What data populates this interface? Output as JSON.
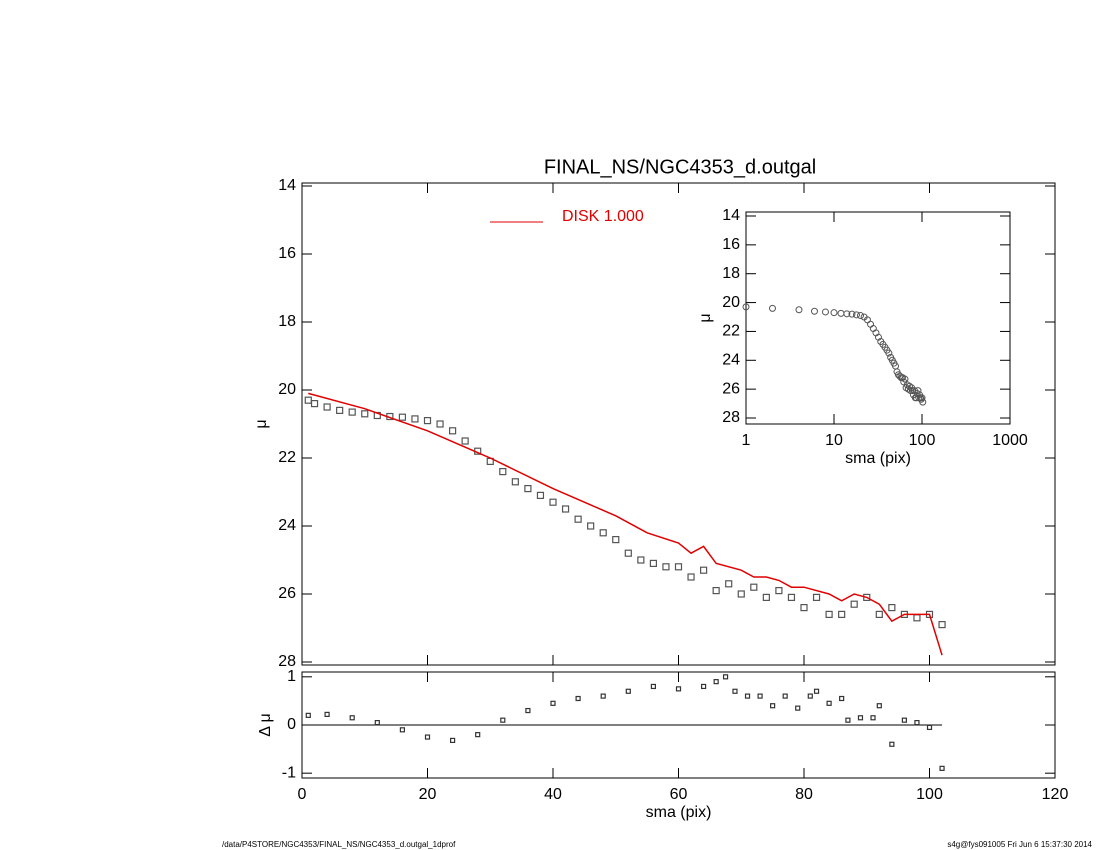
{
  "chart_data": [
    {
      "type": "line",
      "title": "FINAL_NS/NGC4353_d.outgal",
      "ylabel": "μ",
      "ylim": [
        14,
        28
      ],
      "y_inverted": true,
      "yticks": [
        14,
        16,
        18,
        20,
        22,
        24,
        26,
        28
      ],
      "series": [
        {
          "marker": "square",
          "color": "#555555",
          "x": [
            1,
            2,
            4,
            6,
            8,
            10,
            12,
            14,
            16,
            18,
            20,
            22,
            24,
            26,
            28,
            30,
            32,
            34,
            36,
            38,
            40,
            42,
            44,
            46,
            48,
            50,
            52,
            54,
            56,
            58,
            60,
            62,
            64,
            66,
            68,
            70,
            72,
            74,
            76,
            78,
            80,
            82,
            84,
            86,
            88,
            90,
            92,
            94,
            96,
            98,
            100,
            102
          ],
          "values": [
            20.3,
            20.4,
            20.5,
            20.6,
            20.65,
            20.7,
            20.75,
            20.78,
            20.8,
            20.85,
            20.9,
            21.0,
            21.2,
            21.5,
            21.8,
            22.1,
            22.4,
            22.7,
            22.9,
            23.1,
            23.3,
            23.5,
            23.8,
            24.0,
            24.2,
            24.4,
            24.8,
            25.0,
            25.1,
            25.2,
            25.2,
            25.5,
            25.3,
            25.9,
            25.7,
            26.0,
            25.8,
            26.1,
            25.9,
            26.1,
            26.4,
            26.1,
            26.6,
            26.6,
            26.3,
            26.1,
            26.6,
            26.4,
            26.6,
            26.7,
            26.6,
            26.9
          ]
        },
        {
          "name": "DISK  1.000",
          "color": "#e00000",
          "x": [
            1,
            10,
            20,
            30,
            40,
            50,
            55,
            60,
            62,
            64,
            66,
            70,
            72,
            74,
            76,
            78,
            80,
            84,
            86,
            88,
            90,
            92,
            94,
            96,
            100,
            102
          ],
          "values": [
            20.1,
            20.55,
            21.2,
            22.0,
            22.9,
            23.7,
            24.2,
            24.5,
            24.8,
            24.6,
            25.1,
            25.3,
            25.5,
            25.5,
            25.6,
            25.8,
            25.8,
            26.0,
            26.2,
            26.0,
            26.1,
            26.3,
            26.8,
            26.6,
            26.6,
            27.8
          ]
        }
      ]
    },
    {
      "type": "scatter",
      "xlabel": "sma (pix)",
      "ylabel": "Δ μ",
      "xlim": [
        0,
        120
      ],
      "xticks": [
        0,
        20,
        40,
        60,
        80,
        100,
        120
      ],
      "ylim": [
        -1.1,
        1.1
      ],
      "yticks": [
        -1,
        0,
        1
      ],
      "reference_line": 0,
      "x": [
        1,
        4,
        8,
        12,
        16,
        20,
        24,
        28,
        32,
        36,
        40,
        44,
        48,
        52,
        56,
        60,
        64,
        66,
        67.5,
        69,
        71,
        73,
        75,
        77,
        79,
        81,
        82,
        84,
        86,
        87,
        89,
        91,
        92,
        94,
        96,
        98,
        100,
        102
      ],
      "values": [
        0.2,
        0.22,
        0.15,
        0.05,
        -0.1,
        -0.25,
        -0.32,
        -0.2,
        0.1,
        0.3,
        0.45,
        0.55,
        0.6,
        0.7,
        0.8,
        0.75,
        0.8,
        0.9,
        1.0,
        0.7,
        0.6,
        0.6,
        0.4,
        0.6,
        0.35,
        0.6,
        0.7,
        0.45,
        0.55,
        0.1,
        0.15,
        0.15,
        0.4,
        -0.4,
        0.1,
        0.05,
        -0.05,
        -0.9
      ]
    },
    {
      "type": "inset",
      "xlabel": "sma (pix)",
      "ylabel": "μ",
      "log_x": true,
      "xlim": [
        1,
        1000
      ],
      "xticks": [
        1,
        10,
        100,
        1000
      ],
      "ylim": [
        14,
        28
      ],
      "y_inverted": true,
      "yticks": [
        14,
        16,
        18,
        20,
        22,
        24,
        26,
        28
      ]
    }
  ],
  "footer": {
    "left": "/data/P4STORE/NGC4353/FINAL_NS/NGC4353_d.outgal_1dprof",
    "right": "s4g@fys091005  Fri Jun  6 15:37:30 2014"
  }
}
